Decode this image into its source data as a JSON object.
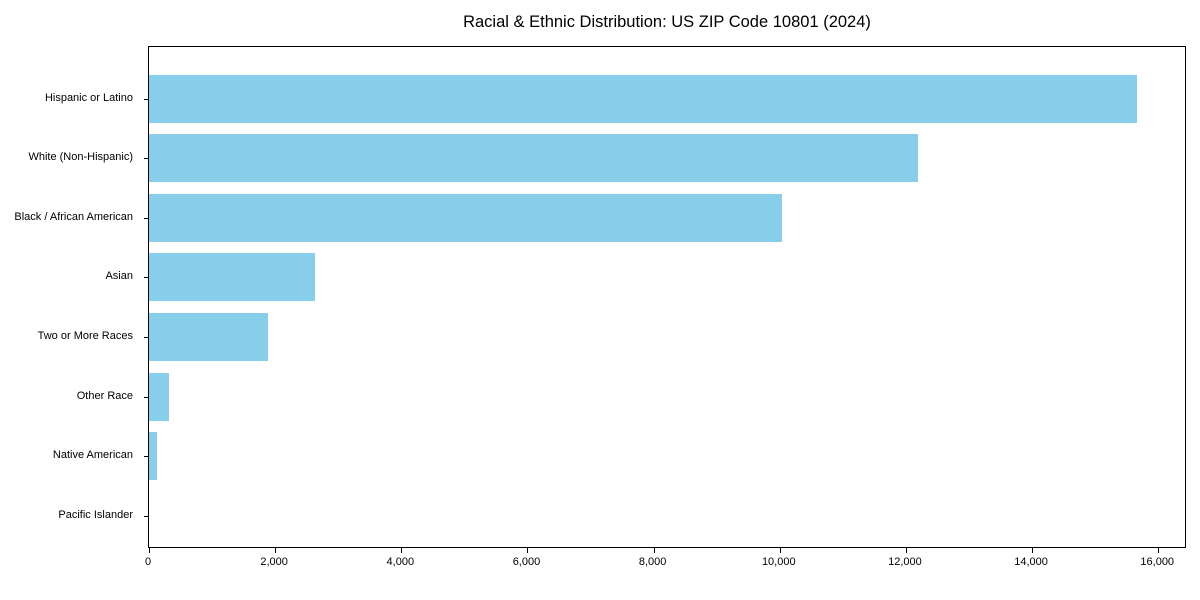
{
  "title": "Racial & Ethnic Distribution: US ZIP Code 10801 (2024)",
  "colors": {
    "bar": "#87CEEB",
    "axis": "#000000",
    "background": "#ffffff",
    "text": "#000000"
  },
  "chart_data": {
    "type": "bar",
    "orientation": "horizontal",
    "title": "Racial & Ethnic Distribution: US ZIP Code 10801 (2024)",
    "xlabel": "",
    "ylabel": "",
    "categories": [
      "Hispanic or Latino",
      "White (Non-Hispanic)",
      "Black / African American",
      "Asian",
      "Two or More Races",
      "Other Race",
      "Native American",
      "Pacific Islander"
    ],
    "values": [
      15660,
      12190,
      10040,
      2630,
      1890,
      310,
      130,
      0
    ],
    "xlim": [
      0,
      16456
    ],
    "xticks": [
      0,
      2000,
      4000,
      6000,
      8000,
      10000,
      12000,
      14000,
      16000
    ],
    "xtick_labels": [
      "0",
      "2,000",
      "4,000",
      "6,000",
      "8,000",
      "10,000",
      "12,000",
      "14,000",
      "16,000"
    ],
    "grid": false,
    "legend": null
  }
}
